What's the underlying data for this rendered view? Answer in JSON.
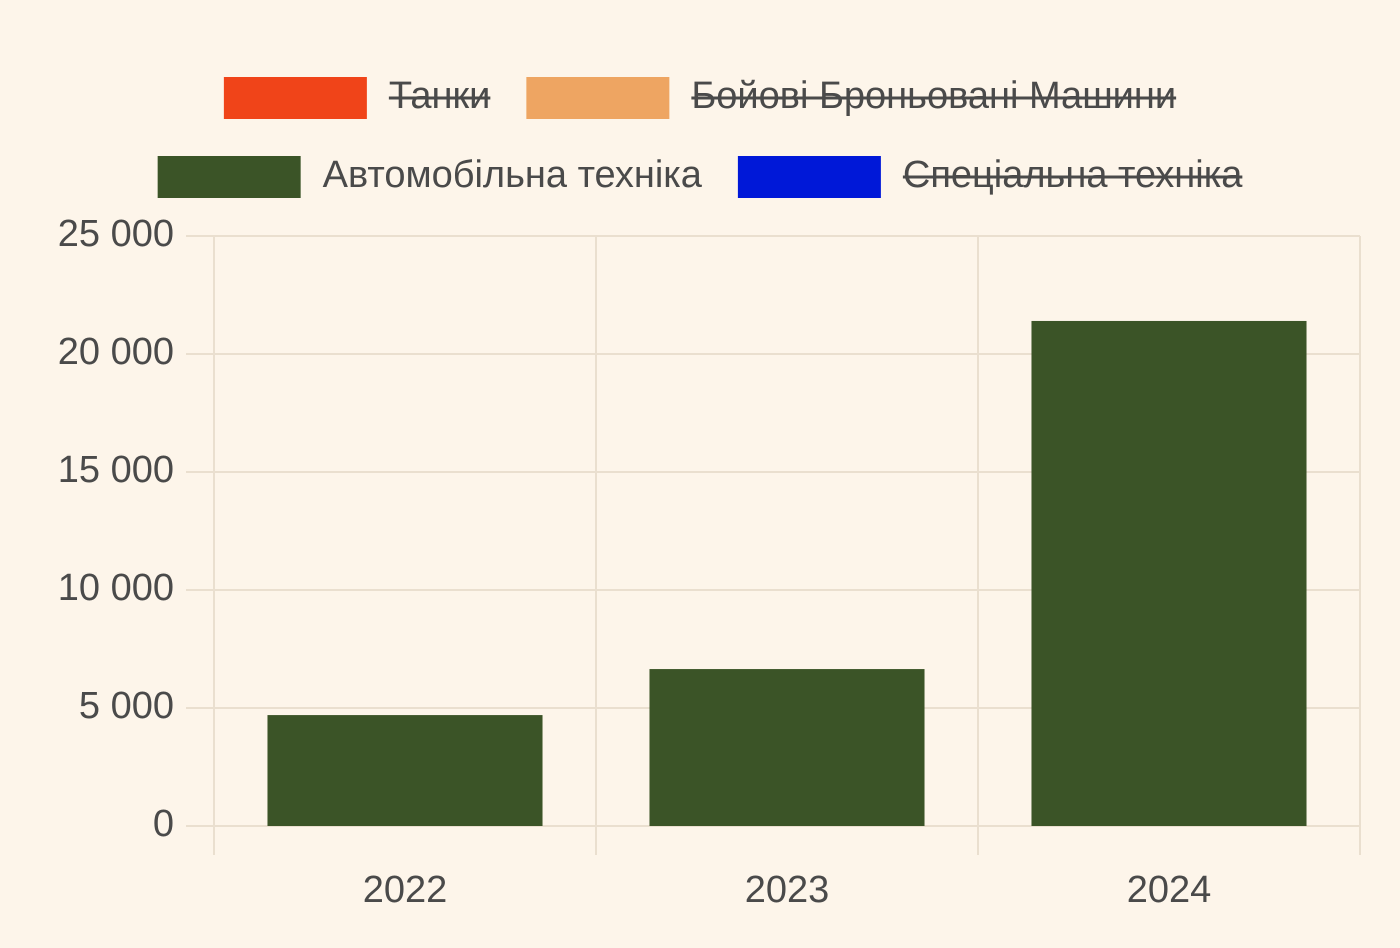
{
  "chart_data": {
    "type": "bar",
    "categories": [
      "2022",
      "2023",
      "2024"
    ],
    "series": [
      {
        "name": "Танки",
        "color": "#f04419",
        "hidden": true,
        "values": [
          null,
          null,
          null
        ]
      },
      {
        "name": "Бойові Броньовані Машини",
        "color": "#eea562",
        "hidden": true,
        "values": [
          null,
          null,
          null
        ]
      },
      {
        "name": "Автомобільна техніка",
        "color": "#3b5427",
        "hidden": false,
        "values": [
          4700,
          6650,
          21400
        ]
      },
      {
        "name": "Спеціальна техніка",
        "color": "#0018d8",
        "hidden": true,
        "values": [
          null,
          null,
          null
        ]
      }
    ],
    "ylim": [
      0,
      25000
    ],
    "yticks": [
      0,
      {
        "value": 5000,
        "label": "5 000"
      },
      {
        "value": 10000,
        "label": "10 000"
      },
      {
        "value": 15000,
        "label": "15 000"
      },
      {
        "value": 20000,
        "label": "20 000"
      },
      {
        "value": 25000,
        "label": "25 000"
      }
    ],
    "grid": true,
    "legend": "top"
  }
}
